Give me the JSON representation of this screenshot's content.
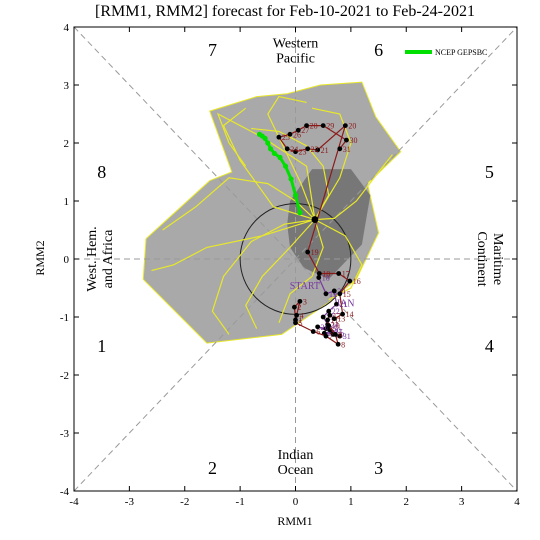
{
  "chart_data": {
    "type": "scatter",
    "title": "[RMM1, RMM2] forecast for Feb-10-2021 to Feb-24-2021",
    "xlabel": "RMM1",
    "ylabel": "RMM2",
    "xlim": [
      -4,
      4
    ],
    "ylim": [
      -4,
      4
    ],
    "x_ticks": [
      "-4",
      "-3",
      "-2",
      "-1",
      "0",
      "1",
      "2",
      "3",
      "4"
    ],
    "y_ticks": [
      "-4",
      "-3",
      "-2",
      "-1",
      "0",
      "1",
      "2",
      "3",
      "4"
    ],
    "grid": false,
    "legend_position": "top-right",
    "colors": {
      "ensemble_member": "#e8e82a",
      "ensemble_mean": "#00e000",
      "observed": "#000000",
      "observed_jan": "#7a3aa0",
      "observed_feb": "#8b1a1a",
      "spread_outer": "#a9a9a9",
      "spread_inner": "#6e6e6e",
      "phase_label": "#000000"
    },
    "phase_numbers": [
      {
        "label": "1",
        "x": -3.5,
        "y": -1.5
      },
      {
        "label": "2",
        "x": -1.5,
        "y": -3.6
      },
      {
        "label": "3",
        "x": 1.5,
        "y": -3.6
      },
      {
        "label": "4",
        "x": 3.5,
        "y": -1.5
      },
      {
        "label": "5",
        "x": 3.5,
        "y": 1.5
      },
      {
        "label": "6",
        "x": 1.5,
        "y": 3.6
      },
      {
        "label": "7",
        "x": -1.5,
        "y": 3.6
      },
      {
        "label": "8",
        "x": -3.5,
        "y": 1.5
      }
    ],
    "region_labels": {
      "top": [
        "Western",
        "Pacific"
      ],
      "bottom": [
        "Indian",
        "Ocean"
      ],
      "left": [
        "West. Hem.",
        "and Africa"
      ],
      "right": [
        "Maritime",
        "Continent"
      ]
    },
    "legend": [
      {
        "label": "NCEP GEPSBC",
        "color": "#00e000"
      }
    ],
    "text_markers": {
      "start": "START",
      "jan": "JAN"
    },
    "observed_jan": [
      {
        "day": "18",
        "x": 0.42,
        "y": -0.32
      },
      {
        "day": "19",
        "x": 0.55,
        "y": -0.6
      },
      {
        "day": "20",
        "x": 0.7,
        "y": -0.55
      },
      {
        "day": "21",
        "x": 0.74,
        "y": -0.78
      },
      {
        "day": "22",
        "x": 0.6,
        "y": -0.9
      },
      {
        "day": "23",
        "x": 0.5,
        "y": -1.0
      },
      {
        "day": "24",
        "x": 0.58,
        "y": -1.13
      },
      {
        "day": "25",
        "x": 0.55,
        "y": -1.2
      },
      {
        "day": "26",
        "x": 0.4,
        "y": -1.17
      },
      {
        "day": "27",
        "x": 0.65,
        "y": -1.25
      },
      {
        "day": "28",
        "x": 0.52,
        "y": -1.28
      },
      {
        "day": "29",
        "x": 0.68,
        "y": -1.3
      },
      {
        "day": "30",
        "x": 0.62,
        "y": -1.22
      },
      {
        "day": "31",
        "x": 0.8,
        "y": -1.33
      }
    ],
    "observed_feb": [
      {
        "day": "1",
        "x": 0.0,
        "y": -1.05
      },
      {
        "day": "2",
        "x": -0.02,
        "y": -0.83
      },
      {
        "day": "3",
        "x": 0.08,
        "y": -0.73
      },
      {
        "day": "4",
        "x": 0.02,
        "y": -0.97
      },
      {
        "day": "5",
        "x": 0.0,
        "y": -1.1
      },
      {
        "day": "6",
        "x": 0.32,
        "y": -1.25
      },
      {
        "day": "7",
        "x": 0.55,
        "y": -1.33
      },
      {
        "day": "8",
        "x": 0.77,
        "y": -1.47
      },
      {
        "day": "9",
        "x": 0.72,
        "y": -1.3
      },
      {
        "day": "10",
        "x": 0.6,
        "y": -1.15
      },
      {
        "day": "11",
        "x": 0.58,
        "y": -1.05
      },
      {
        "day": "12",
        "x": 0.62,
        "y": -0.97
      },
      {
        "day": "13",
        "x": 0.7,
        "y": -1.03
      },
      {
        "day": "14",
        "x": 0.85,
        "y": -0.95
      },
      {
        "day": "15",
        "x": 0.8,
        "y": -0.6
      },
      {
        "day": "16",
        "x": 0.98,
        "y": -0.38
      },
      {
        "day": "17",
        "x": 0.78,
        "y": -0.25
      },
      {
        "day": "18",
        "x": 0.43,
        "y": -0.25
      },
      {
        "day": "19",
        "x": 0.22,
        "y": 0.12
      },
      {
        "day": "20",
        "x": 0.9,
        "y": 2.3
      },
      {
        "day": "21",
        "x": 0.4,
        "y": 1.88
      },
      {
        "day": "22",
        "x": 0.22,
        "y": 1.9
      },
      {
        "day": "23",
        "x": 0.0,
        "y": 1.85
      },
      {
        "day": "24",
        "x": -0.15,
        "y": 1.9
      },
      {
        "day": "25",
        "x": -0.3,
        "y": 2.1
      },
      {
        "day": "26",
        "x": -0.1,
        "y": 2.15
      },
      {
        "day": "27",
        "x": 0.05,
        "y": 2.22
      },
      {
        "day": "28",
        "x": 0.2,
        "y": 2.3
      },
      {
        "day": "29",
        "x": 0.5,
        "y": 2.3
      },
      {
        "day": "30",
        "x": 0.92,
        "y": 2.05
      },
      {
        "day": "31",
        "x": 0.8,
        "y": 1.9
      }
    ],
    "ensemble_mean": [
      {
        "x": 0.08,
        "y": 0.8
      },
      {
        "x": 0.0,
        "y": 1.1
      },
      {
        "x": -0.08,
        "y": 1.38
      },
      {
        "x": -0.18,
        "y": 1.6
      },
      {
        "x": -0.28,
        "y": 1.75
      },
      {
        "x": -0.38,
        "y": 1.82
      },
      {
        "x": -0.45,
        "y": 1.9
      },
      {
        "x": -0.5,
        "y": 2.0
      },
      {
        "x": -0.55,
        "y": 2.08
      },
      {
        "x": -0.6,
        "y": 2.12
      },
      {
        "x": -0.65,
        "y": 2.15
      }
    ],
    "mean_start": {
      "x": 0.35,
      "y": 0.68
    },
    "spread_outer": [
      [
        -2.7,
        0.35
      ],
      [
        -1.55,
        1.35
      ],
      [
        -1.15,
        1.5
      ],
      [
        -1.55,
        2.55
      ],
      [
        -0.7,
        2.8
      ],
      [
        -0.15,
        2.85
      ],
      [
        0.45,
        3.0
      ],
      [
        1.2,
        3.05
      ],
      [
        1.45,
        2.45
      ],
      [
        1.9,
        1.85
      ],
      [
        1.3,
        1.3
      ],
      [
        1.5,
        0.45
      ],
      [
        1.1,
        -0.35
      ],
      [
        0.6,
        -0.75
      ],
      [
        -0.25,
        -1.3
      ],
      [
        -1.6,
        -1.45
      ],
      [
        -2.75,
        -0.35
      ]
    ],
    "spread_inner": [
      [
        -0.1,
        1.0
      ],
      [
        0.3,
        1.55
      ],
      [
        1.0,
        1.55
      ],
      [
        1.35,
        1.1
      ],
      [
        1.2,
        0.25
      ],
      [
        0.6,
        -0.35
      ],
      [
        0.15,
        -0.15
      ],
      [
        -0.1,
        0.2
      ],
      [
        -0.15,
        0.6
      ]
    ],
    "ensemble_members": [
      [
        [
          0.35,
          0.68
        ],
        [
          0.6,
          1.1
        ],
        [
          0.5,
          1.6
        ],
        [
          0.2,
          1.95
        ],
        [
          -0.3,
          2.2
        ],
        [
          -0.8,
          2.25
        ]
      ],
      [
        [
          0.35,
          0.68
        ],
        [
          0.0,
          1.0
        ],
        [
          -0.5,
          1.3
        ],
        [
          -1.2,
          1.4
        ],
        [
          -1.8,
          0.9
        ],
        [
          -2.4,
          0.5
        ]
      ],
      [
        [
          0.35,
          0.68
        ],
        [
          -0.2,
          0.6
        ],
        [
          -0.8,
          0.3
        ],
        [
          -1.3,
          -0.3
        ],
        [
          -1.5,
          -0.9
        ],
        [
          -1.2,
          -1.3
        ]
      ],
      [
        [
          0.35,
          0.68
        ],
        [
          0.7,
          0.7
        ],
        [
          1.1,
          1.0
        ],
        [
          1.5,
          1.5
        ],
        [
          1.75,
          1.8
        ]
      ],
      [
        [
          0.35,
          0.68
        ],
        [
          0.5,
          0.2
        ],
        [
          0.3,
          -0.3
        ],
        [
          -0.1,
          -0.6
        ],
        [
          -0.3,
          -1.1
        ]
      ],
      [
        [
          0.35,
          0.68
        ],
        [
          0.1,
          1.3
        ],
        [
          -0.2,
          1.9
        ],
        [
          -0.5,
          2.5
        ],
        [
          -0.3,
          2.8
        ],
        [
          0.2,
          2.7
        ]
      ],
      [
        [
          0.35,
          0.68
        ],
        [
          0.8,
          1.4
        ],
        [
          1.0,
          2.0
        ],
        [
          0.8,
          2.5
        ],
        [
          0.3,
          2.6
        ]
      ],
      [
        [
          0.35,
          0.68
        ],
        [
          -0.4,
          0.9
        ],
        [
          -1.0,
          1.7
        ],
        [
          -1.3,
          2.3
        ],
        [
          -0.9,
          2.6
        ]
      ],
      [
        [
          0.35,
          0.68
        ],
        [
          -0.1,
          0.2
        ],
        [
          -0.6,
          -0.3
        ],
        [
          -0.9,
          -0.8
        ],
        [
          -0.7,
          -1.2
        ]
      ],
      [
        [
          0.35,
          0.68
        ],
        [
          0.9,
          0.4
        ],
        [
          1.2,
          -0.1
        ],
        [
          1.0,
          -0.5
        ],
        [
          0.6,
          -0.7
        ]
      ],
      [
        [
          0.35,
          0.68
        ],
        [
          0.2,
          1.6
        ],
        [
          -0.6,
          2.1
        ],
        [
          -1.4,
          2.5
        ],
        [
          -1.2,
          2.0
        ],
        [
          -0.9,
          1.6
        ]
      ],
      [
        [
          0.35,
          0.68
        ],
        [
          -0.6,
          0.4
        ],
        [
          -1.6,
          0.2
        ],
        [
          -2.2,
          -0.1
        ],
        [
          -2.6,
          -0.2
        ]
      ]
    ]
  }
}
